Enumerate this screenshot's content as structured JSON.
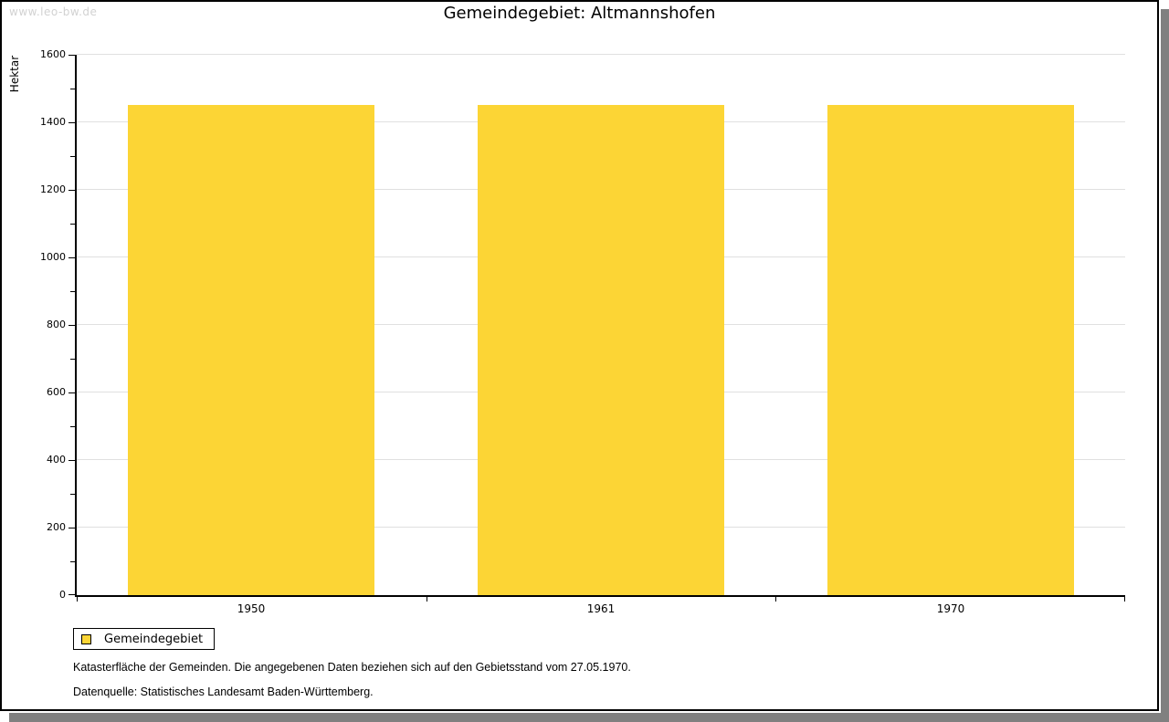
{
  "watermark": "www.leo-bw.de",
  "title": "Gemeindegebiet: Altmannshofen",
  "chart_data": {
    "type": "bar",
    "title": "Gemeindegebiet: Altmannshofen",
    "categories": [
      "1950",
      "1961",
      "1970"
    ],
    "series": [
      {
        "name": "Gemeindegebiet",
        "values": [
          1450,
          1450,
          1450
        ]
      }
    ],
    "xlabel": "",
    "ylabel": "Hektar",
    "ylim": [
      0,
      1600
    ],
    "ytick_step": 200,
    "yminor_step": 100,
    "grid": true,
    "bar_color": "#fcd535",
    "gridline_color": "#e0e0e0",
    "legend_position": "bottom-left"
  },
  "legend": {
    "items": [
      {
        "label": "Gemeindegebiet",
        "color": "#fcd535"
      }
    ]
  },
  "footnotes": [
    "Katasterfläche der Gemeinden. Die angegebenen Daten beziehen sich auf den Gebietsstand vom 27.05.1970.",
    "Datenquelle: Statistisches Landesamt Baden-Württemberg."
  ],
  "colors": {
    "bar": "#fcd535",
    "axis": "#000000",
    "gridline": "#e0e0e0",
    "watermark": "#d2d2d2",
    "shadow": "#808080",
    "background": "#ffffff"
  }
}
